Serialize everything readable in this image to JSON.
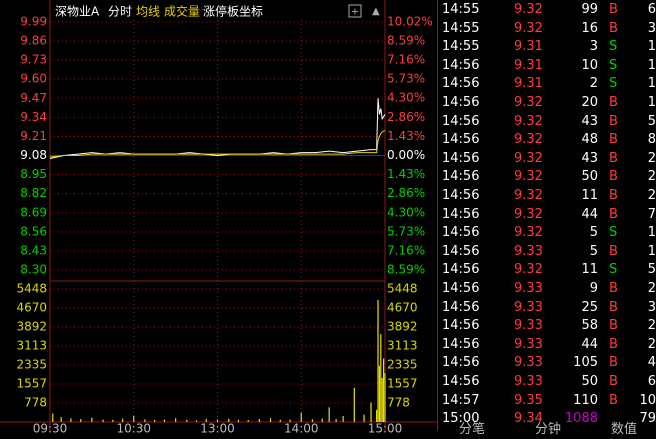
{
  "header": {
    "stock": "深物业A",
    "items": [
      "分时",
      "均线",
      "成交量",
      "涨停板坐标"
    ]
  },
  "chart_data": [
    {
      "type": "line",
      "x": [
        0,
        10,
        20,
        30,
        40,
        50,
        60,
        70,
        80,
        90,
        100,
        110,
        120,
        130,
        140,
        150,
        160,
        170,
        180,
        190,
        200,
        210,
        220,
        230,
        234,
        235,
        236,
        237,
        238,
        240
      ],
      "xlim": [
        0,
        240
      ],
      "ylim": [
        8.3,
        9.99
      ],
      "yticks": [
        9.99,
        9.86,
        9.73,
        {
          "value": 9.6,
          "label": "9.60"
        },
        9.47,
        9.34,
        9.21,
        9.08,
        8.95,
        8.82,
        8.69,
        8.56,
        8.43,
        {
          "value": 8.3,
          "label": "8.30"
        }
      ],
      "y2lim": [
        -8.59,
        10.02
      ],
      "y2ticks": [
        {
          "value": 10.02,
          "label": "10.02%"
        },
        {
          "value": 8.59,
          "label": "8.59%"
        },
        {
          "value": 7.16,
          "label": "7.16%"
        },
        {
          "value": 5.73,
          "label": "5.73%"
        },
        {
          "value": 4.3,
          "label": "4.30%"
        },
        {
          "value": 2.86,
          "label": "2.86%"
        },
        {
          "value": 1.43,
          "label": "1.43%"
        },
        {
          "value": 0,
          "label": "0.00%"
        },
        {
          "value": -1.43,
          "label": "1.43%"
        },
        {
          "value": -2.86,
          "label": "2.86%"
        },
        {
          "value": -4.3,
          "label": "4.30%"
        },
        {
          "value": -5.73,
          "label": "5.73%"
        },
        {
          "value": -7.16,
          "label": "7.16%"
        },
        {
          "value": -8.59,
          "label": "8.59%"
        }
      ],
      "series": [
        {
          "color": "#ffffff",
          "values": [
            9.06,
            9.08,
            9.09,
            9.1,
            9.09,
            9.1,
            9.09,
            9.09,
            9.09,
            9.09,
            9.1,
            9.09,
            9.08,
            9.09,
            9.09,
            9.09,
            9.1,
            9.09,
            9.1,
            9.1,
            9.11,
            9.1,
            9.11,
            9.12,
            9.12,
            9.47,
            9.36,
            9.4,
            9.33,
            9.36
          ]
        },
        {
          "color": "#e8d000",
          "values": [
            9.07,
            9.08,
            9.08,
            9.09,
            9.09,
            9.09,
            9.09,
            9.09,
            9.09,
            9.09,
            9.09,
            9.09,
            9.09,
            9.09,
            9.09,
            9.09,
            9.09,
            9.09,
            9.09,
            9.09,
            9.09,
            9.09,
            9.1,
            9.1,
            9.1,
            9.18,
            9.21,
            9.23,
            9.24,
            9.25
          ]
        }
      ]
    },
    {
      "type": "bar",
      "color": "#e8e000",
      "x": [
        2,
        8,
        15,
        22,
        30,
        38,
        45,
        52,
        60,
        68,
        75,
        82,
        90,
        98,
        105,
        112,
        120,
        128,
        135,
        142,
        150,
        158,
        165,
        172,
        180,
        188,
        195,
        200,
        205,
        210,
        218,
        225,
        230,
        234,
        235,
        236,
        237,
        238,
        239,
        240
      ],
      "values": [
        350,
        200,
        150,
        120,
        180,
        100,
        90,
        140,
        260,
        110,
        80,
        100,
        150,
        90,
        60,
        120,
        100,
        130,
        90,
        80,
        120,
        150,
        90,
        100,
        380,
        110,
        140,
        600,
        120,
        250,
        1400,
        300,
        800,
        500,
        5000,
        2300,
        3600,
        1800,
        2600,
        2000
      ],
      "xlim": [
        0,
        240
      ],
      "ylim": [
        0,
        5448
      ],
      "yticks": [
        5448,
        4670,
        3892,
        3113,
        2335,
        1557,
        778
      ],
      "xticks": [
        {
          "value": 0,
          "label": "09:30"
        },
        {
          "value": 60,
          "label": "10:30"
        },
        {
          "value": 120,
          "label": "13:00"
        },
        {
          "value": 180,
          "label": "14:00"
        },
        {
          "value": 240,
          "label": "15:00"
        }
      ]
    }
  ],
  "trades": [
    {
      "time": "14:55",
      "price": "9.32",
      "volume": "99",
      "side": "B",
      "count": "6"
    },
    {
      "time": "14:55",
      "price": "9.32",
      "volume": "16",
      "side": "B",
      "count": "3"
    },
    {
      "time": "14:55",
      "price": "9.31",
      "volume": "3",
      "side": "S",
      "count": "1"
    },
    {
      "time": "14:56",
      "price": "9.31",
      "volume": "10",
      "side": "S",
      "count": "1"
    },
    {
      "time": "14:56",
      "price": "9.31",
      "volume": "2",
      "side": "S",
      "count": "1"
    },
    {
      "time": "14:56",
      "price": "9.32",
      "volume": "20",
      "side": "B",
      "count": "1"
    },
    {
      "time": "14:56",
      "price": "9.32",
      "volume": "43",
      "side": "B",
      "count": "5"
    },
    {
      "time": "14:56",
      "price": "9.32",
      "volume": "48",
      "side": "B",
      "count": "8"
    },
    {
      "time": "14:56",
      "price": "9.32",
      "volume": "43",
      "side": "B",
      "count": "2"
    },
    {
      "time": "14:56",
      "price": "9.32",
      "volume": "50",
      "side": "B",
      "count": "2"
    },
    {
      "time": "14:56",
      "price": "9.32",
      "volume": "11",
      "side": "B",
      "count": "2"
    },
    {
      "time": "14:56",
      "price": "9.32",
      "volume": "44",
      "side": "B",
      "count": "7"
    },
    {
      "time": "14:56",
      "price": "9.32",
      "volume": "5",
      "side": "S",
      "count": "1"
    },
    {
      "time": "14:56",
      "price": "9.33",
      "volume": "5",
      "side": "B",
      "count": "1"
    },
    {
      "time": "14:56",
      "price": "9.32",
      "volume": "11",
      "side": "S",
      "count": "5"
    },
    {
      "time": "14:56",
      "price": "9.33",
      "volume": "9",
      "side": "B",
      "count": "2"
    },
    {
      "time": "14:56",
      "price": "9.33",
      "volume": "25",
      "side": "B",
      "count": "3"
    },
    {
      "time": "14:56",
      "price": "9.33",
      "volume": "58",
      "side": "B",
      "count": "2"
    },
    {
      "time": "14:56",
      "price": "9.33",
      "volume": "44",
      "side": "B",
      "count": "2"
    },
    {
      "time": "14:56",
      "price": "9.33",
      "volume": "105",
      "side": "B",
      "count": "4"
    },
    {
      "time": "14:56",
      "price": "9.33",
      "volume": "50",
      "side": "B",
      "count": "6"
    },
    {
      "time": "14:57",
      "price": "9.35",
      "volume": "110",
      "side": "B",
      "count": "10"
    },
    {
      "time": "15:00",
      "price": "9.34",
      "volume": "1088",
      "count": "79"
    }
  ],
  "tabs": [
    "分笔",
    "分钟",
    "数值"
  ]
}
